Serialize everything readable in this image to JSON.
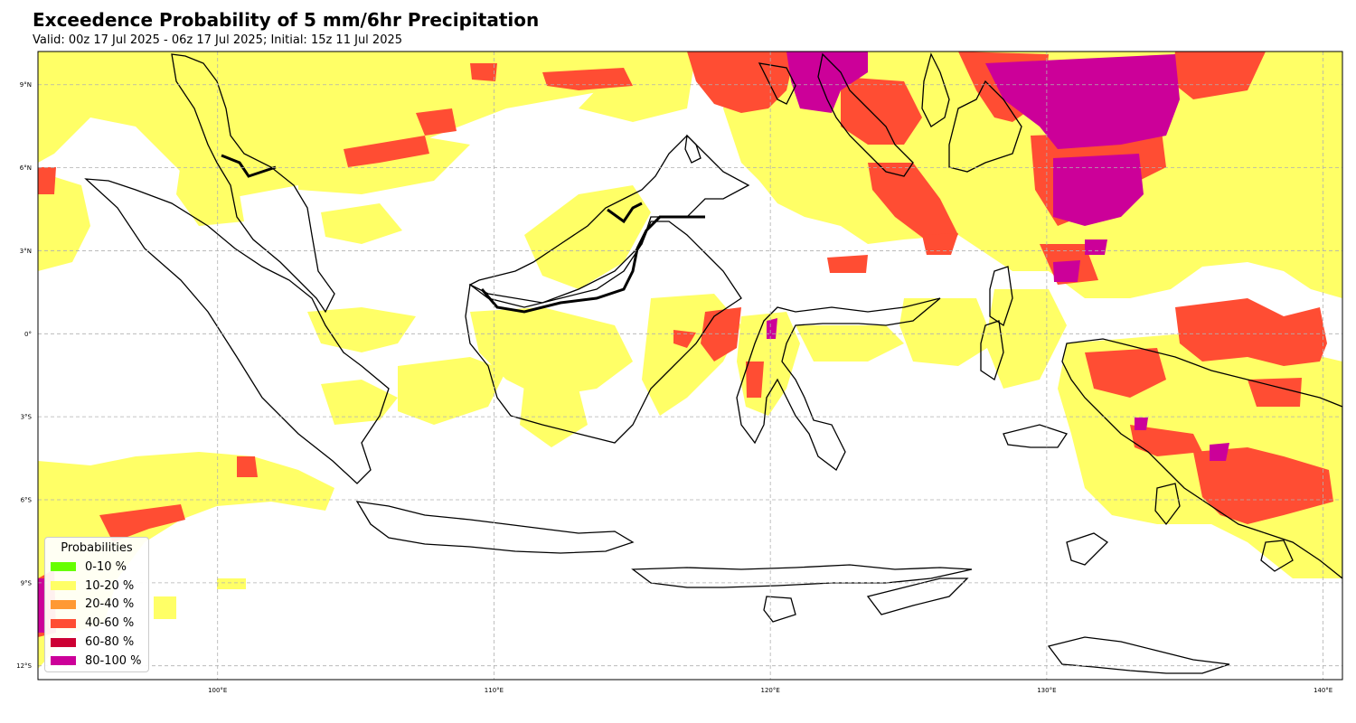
{
  "title": "Exceedence Probability of 5 mm/6hr Precipitation",
  "subtitle": "Valid: 00z 17 Jul 2025 - 06z 17 Jul 2025; Initial: 15z 11 Jul 2025",
  "map": {
    "projection": "PlateCarree",
    "lon_range": [
      93.5,
      140.7
    ],
    "lat_range": [
      -12.5,
      10.2
    ],
    "gridlines": true,
    "lon_ticks": [
      {
        "value": 100,
        "label": "100°E"
      },
      {
        "value": 110,
        "label": "110°E"
      },
      {
        "value": 120,
        "label": "120°E"
      },
      {
        "value": 130,
        "label": "130°E"
      },
      {
        "value": 140,
        "label": "140°E"
      }
    ],
    "lat_ticks": [
      {
        "value": 9,
        "label": "9°N"
      },
      {
        "value": 6,
        "label": "6°N"
      },
      {
        "value": 3,
        "label": "3°N"
      },
      {
        "value": 0,
        "label": "0°"
      },
      {
        "value": -3,
        "label": "3°S"
      },
      {
        "value": -6,
        "label": "6°S"
      },
      {
        "value": -9,
        "label": "9°S"
      },
      {
        "value": -12,
        "label": "12°S"
      }
    ]
  },
  "legend": {
    "title": "Probabilities",
    "placement": "lower-left",
    "items": [
      {
        "label": "0-10 %",
        "color": "#66ff00"
      },
      {
        "label": "10-20 %",
        "color": "#ffff66"
      },
      {
        "label": "20-40 %",
        "color": "#ff9933"
      },
      {
        "label": "40-60 %",
        "color": "#ff4d33"
      },
      {
        "label": "60-80 %",
        "color": "#cc0033"
      },
      {
        "label": "80-100 %",
        "color": "#cc0099"
      }
    ]
  }
}
